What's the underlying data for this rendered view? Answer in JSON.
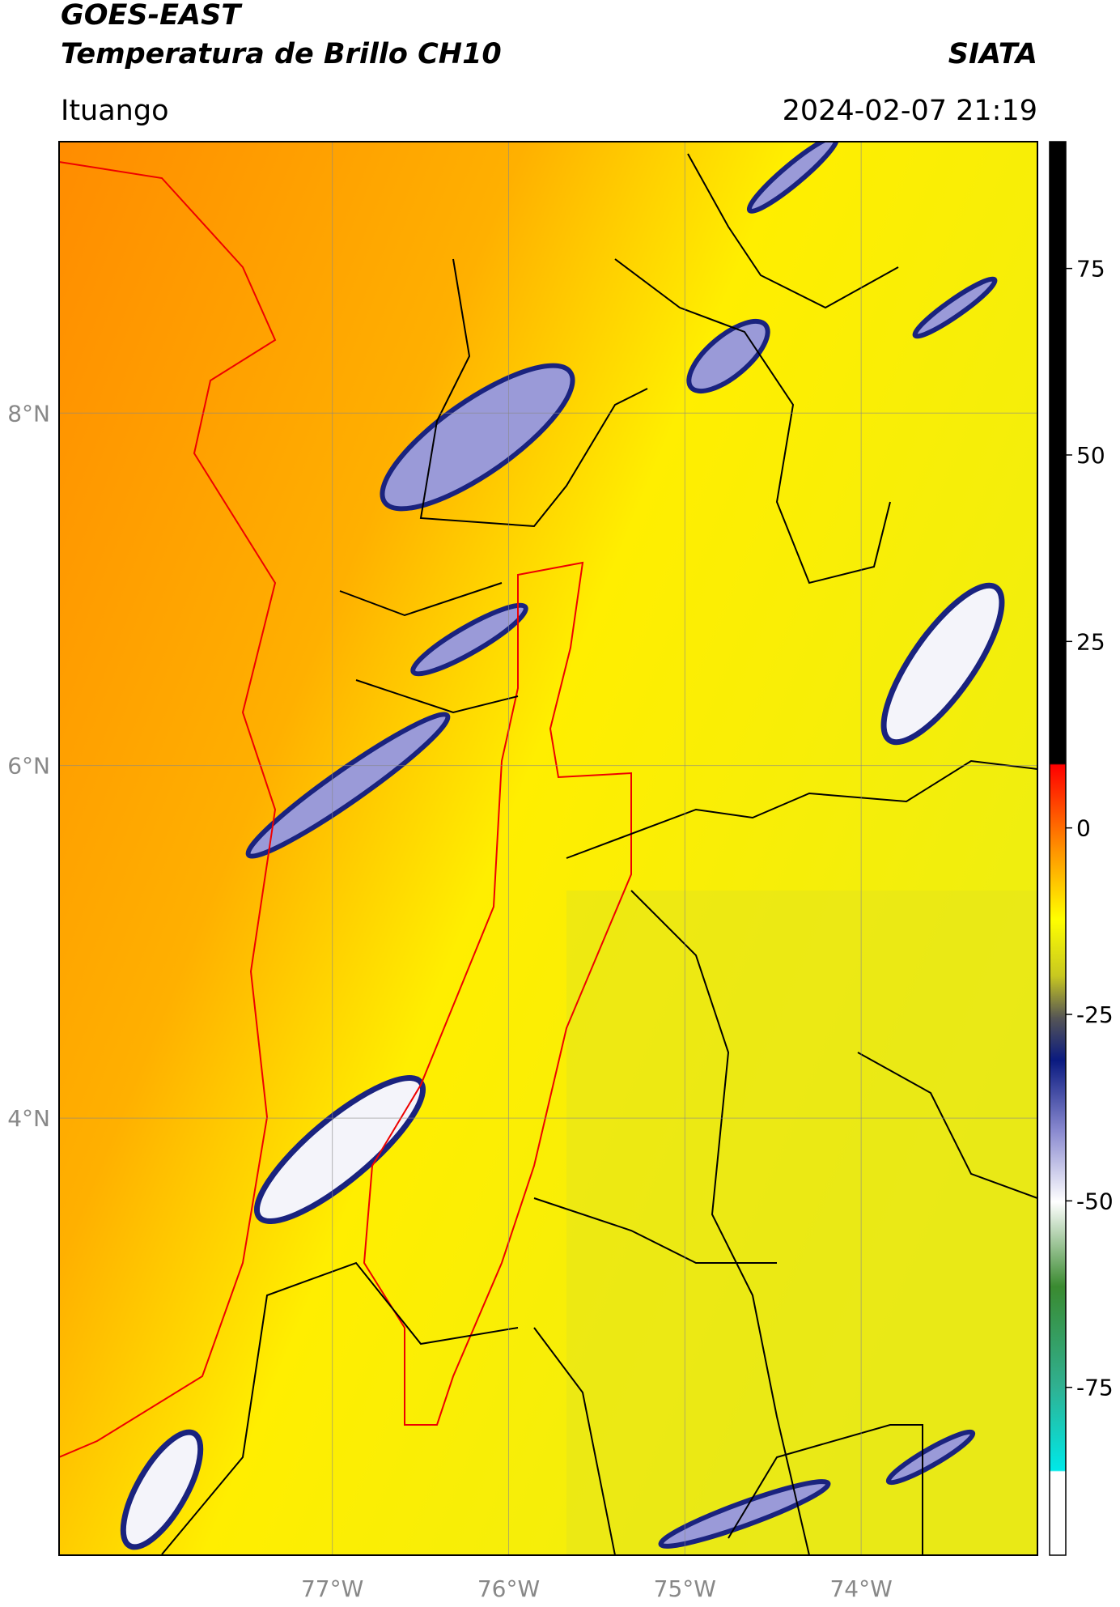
{
  "header": {
    "title": "GOES-EAST",
    "subtitle": "Temperatura de Brillo CH10",
    "source": "SIATA",
    "location": "Ituango",
    "datetime": "2024-02-07 21:19"
  },
  "map": {
    "xlim": [
      -78.55,
      -73.0
    ],
    "ylim": [
      1.52,
      9.54
    ],
    "xticks": [
      {
        "value": -77,
        "label": "77°W"
      },
      {
        "value": -76,
        "label": "76°W"
      },
      {
        "value": -75,
        "label": "75°W"
      },
      {
        "value": -74,
        "label": "74°W"
      }
    ],
    "yticks": [
      {
        "value": 8,
        "label": "8°N"
      },
      {
        "value": 6,
        "label": "6°N"
      },
      {
        "value": 4,
        "label": "4°N"
      }
    ],
    "grid": true
  },
  "colorbar": {
    "lim": [
      -97.5,
      92
    ],
    "ticks": [
      75,
      50,
      25,
      0,
      -25,
      -50,
      -75
    ]
  }
}
